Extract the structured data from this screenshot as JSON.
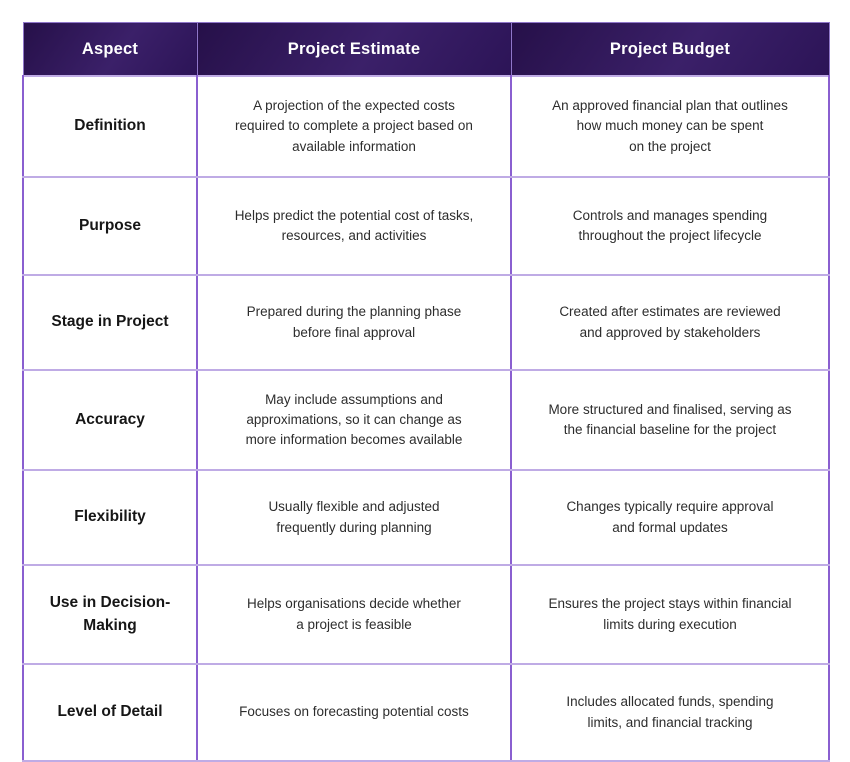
{
  "colors": {
    "header-dark": "#261049",
    "header-mid": "#3b2069",
    "header-dark2": "#2c1457",
    "header-border": "#8f76c9",
    "header-text": "#ffffff",
    "v-line": "#8a5fd0",
    "h-line": "#bfabe5",
    "body-text": "#2d2d2d",
    "aspect-text": "#161616",
    "page-bg": "#ffffff"
  },
  "table": {
    "columns": [
      "Aspect",
      "Project Estimate",
      "Project Budget"
    ],
    "rows": [
      {
        "aspect": "Definition",
        "estimate": "A projection of the expected costs\nrequired to complete a project based on\navailable information",
        "budget": "An approved financial plan that outlines\nhow much money can be spent\non the project"
      },
      {
        "aspect": "Purpose",
        "estimate": "Helps predict the potential cost of tasks,\nresources, and activities",
        "budget": "Controls and manages spending\nthroughout the project lifecycle"
      },
      {
        "aspect": "Stage in Project",
        "estimate": "Prepared during the planning phase\nbefore final approval",
        "budget": "Created after estimates are reviewed\nand approved by stakeholders"
      },
      {
        "aspect": "Accuracy",
        "estimate": "May include assumptions and\napproximations, so it can change as\nmore information becomes available",
        "budget": "More structured and finalised, serving as\nthe financial baseline for the project"
      },
      {
        "aspect": "Flexibility",
        "estimate": "Usually flexible and adjusted\nfrequently during planning",
        "budget": "Changes typically require approval\nand formal updates"
      },
      {
        "aspect": "Use in Decision-\nMaking",
        "estimate": "Helps organisations decide whether\na project is feasible",
        "budget": "Ensures the project stays within financial\nlimits during execution"
      },
      {
        "aspect": "Level of Detail",
        "estimate": "Focuses on forecasting potential costs",
        "budget": "Includes allocated funds, spending\nlimits, and financial tracking"
      }
    ]
  }
}
